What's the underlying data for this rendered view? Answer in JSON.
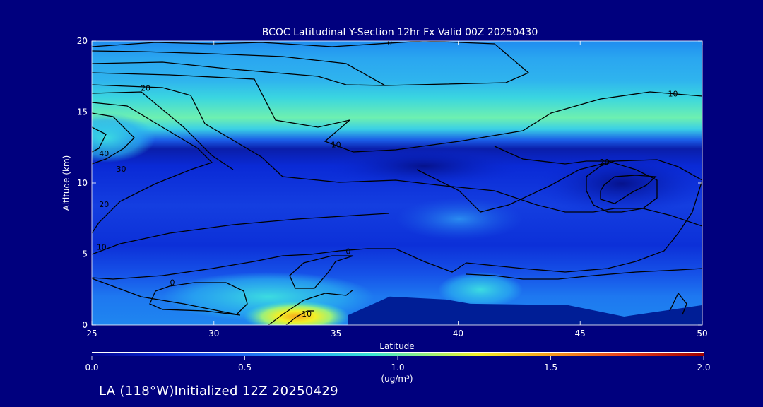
{
  "chart_data": {
    "type": "heatmap",
    "title": "BCOC Latitudinal Y-Section 12hr  Fx Valid 00Z 20250430",
    "xlabel": "Latitude",
    "ylabel": "Altitude (km)",
    "xlim": [
      25,
      50
    ],
    "ylim": [
      0,
      20
    ],
    "x_ticks": [
      25,
      30,
      35,
      40,
      45,
      50
    ],
    "y_ticks": [
      0,
      5,
      10,
      15,
      20
    ],
    "colorbar": {
      "label": "(ug/m³)",
      "range": [
        0.0,
        2.0
      ],
      "ticks": [
        "0.0",
        "0.5",
        "1.0",
        "1.5",
        "2.0"
      ],
      "stops": [
        "#00008c",
        "#0a2ad6",
        "#1f6bf0",
        "#25b4f0",
        "#3ce6d2",
        "#9cf07a",
        "#f2f028",
        "#f7a51c",
        "#e8401e",
        "#a00000"
      ]
    },
    "color_fields": [
      {
        "name": "upper-band",
        "lat_range": [
          25,
          50
        ],
        "alt_range": [
          16.5,
          20
        ],
        "value": 0.58,
        "color": "#1f96f0"
      },
      {
        "name": "high-aerosol-layer",
        "lat_range": [
          25,
          50
        ],
        "alt_range": [
          12.5,
          16.5
        ],
        "value": 0.82,
        "color": "#39dcdc"
      },
      {
        "name": "mid-troposphere-low",
        "lat_range": [
          25,
          50
        ],
        "alt_range": [
          3,
          12.5
        ],
        "value": 0.15,
        "color": "#0a2ad6"
      },
      {
        "name": "boundary-layer",
        "lat_range": [
          25,
          50
        ],
        "alt_range": [
          0,
          3
        ],
        "value": 0.5,
        "color": "#1f7af0"
      },
      {
        "name": "surface-max",
        "lat": 34,
        "alt": 0.3,
        "value": 1.35,
        "color": "#f2a51c"
      }
    ],
    "contour_labels": [
      {
        "text": "0",
        "lat": 37.2,
        "alt": 19.9
      },
      {
        "text": "20",
        "lat": 27.2,
        "alt": 16.7
      },
      {
        "text": "10",
        "lat": 48.8,
        "alt": 16.3
      },
      {
        "text": "10",
        "lat": 35.0,
        "alt": 12.7
      },
      {
        "text": "40",
        "lat": 25.5,
        "alt": 12.1
      },
      {
        "text": "30",
        "lat": 26.2,
        "alt": 11.0
      },
      {
        "text": "20",
        "lat": 46.0,
        "alt": 11.5
      },
      {
        "text": "20",
        "lat": 25.5,
        "alt": 8.5
      },
      {
        "text": "10",
        "lat": 25.4,
        "alt": 5.5
      },
      {
        "text": "0",
        "lat": 35.5,
        "alt": 5.2
      },
      {
        "text": "0",
        "lat": 28.3,
        "alt": 3.0
      },
      {
        "text": "10",
        "lat": 33.8,
        "alt": 0.8
      }
    ],
    "terrain": [
      [
        35.5,
        0.7
      ],
      [
        37.2,
        2.0
      ],
      [
        39.5,
        1.8
      ],
      [
        40.5,
        1.5
      ],
      [
        44.5,
        1.4
      ],
      [
        46.8,
        0.6
      ],
      [
        50,
        1.4
      ]
    ]
  },
  "footer": {
    "text": "LA (118°W)Initialized 12Z 20250429"
  }
}
